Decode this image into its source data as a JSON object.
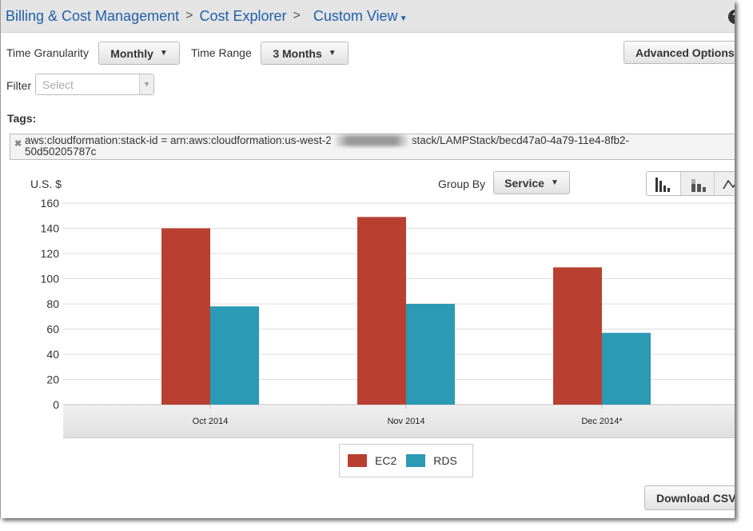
{
  "breadcrumb": {
    "billing": "Billing & Cost Management",
    "cost_explorer": "Cost Explorer",
    "custom_view": "Custom View",
    "sep": ">"
  },
  "help_label": "?",
  "controls": {
    "granularity_label": "Time Granularity",
    "granularity_value": "Monthly",
    "range_label": "Time Range",
    "range_value": "3 Months",
    "advanced": "Advanced Options",
    "filter_label": "Filter",
    "filter_placeholder": "Select",
    "tags_label": "Tags:",
    "tag_text_1": "aws:cloudformation:stack-id = arn:aws:cloudformation:us-west-2",
    "tag_text_2": "stack/LAMPStack/becd47a0-4a79-11e4-8fb2-",
    "tag_text_3": "50d50205787c",
    "group_by_label": "Group By",
    "group_by_value": "Service",
    "download": "Download CSV"
  },
  "colors": {
    "EC2": "#b94031",
    "RDS": "#2b9ab4"
  },
  "chart_data": {
    "type": "bar",
    "title": "",
    "ylabel": "U.S. $",
    "xlabel": "",
    "ylim": [
      0,
      160
    ],
    "yticks": [
      0,
      20,
      40,
      60,
      80,
      100,
      120,
      140,
      160
    ],
    "categories": [
      "Oct 2014",
      "Nov 2014",
      "Dec 2014*"
    ],
    "series": [
      {
        "name": "EC2",
        "values": [
          140,
          149,
          109
        ]
      },
      {
        "name": "RDS",
        "values": [
          78,
          80,
          57
        ]
      }
    ],
    "legend": "bottom",
    "grid": true
  }
}
